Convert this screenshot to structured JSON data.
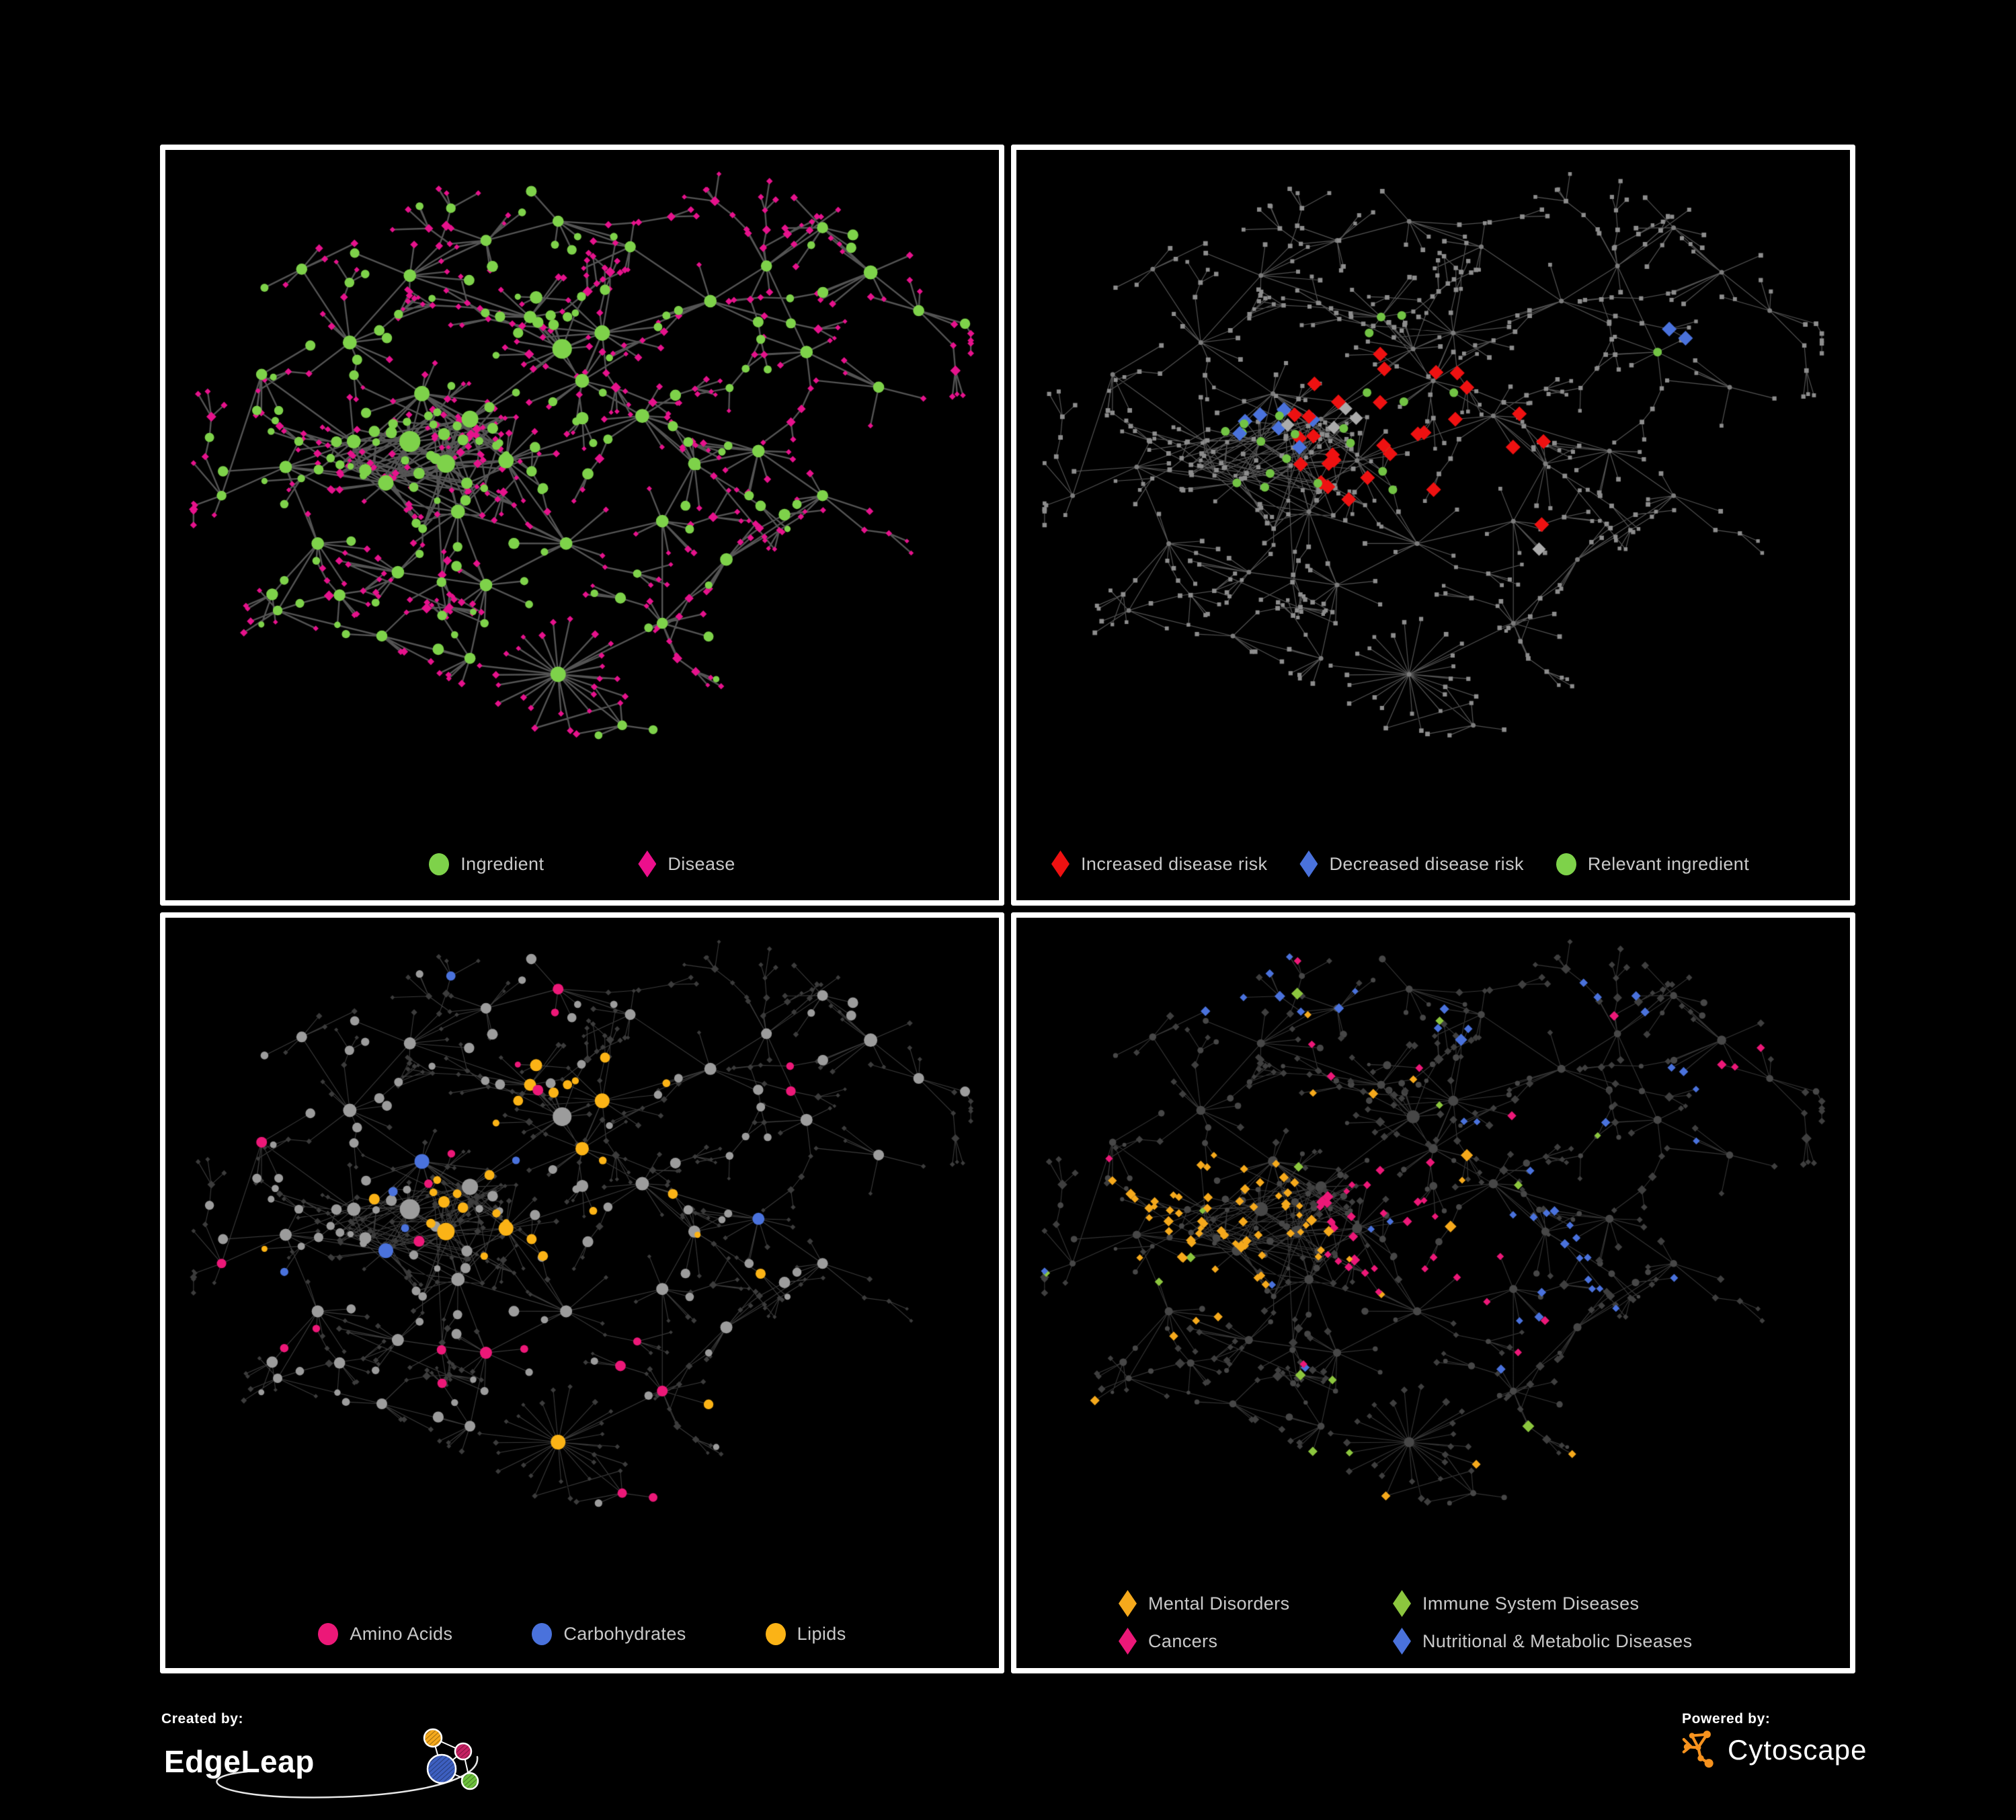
{
  "page": {
    "background": "#000000",
    "panel_border_color": "#ffffff"
  },
  "panels": [
    {
      "name": "node-type-network",
      "legend": {
        "items": [
          {
            "shape": "circle",
            "color": "#7ed24a",
            "label": "Ingredient"
          },
          {
            "shape": "diamond",
            "color": "#ec0f8c",
            "label": "Disease"
          }
        ]
      },
      "style": {
        "mode": "type",
        "edge_color": "#696969",
        "edge_width": 2.4,
        "edge_alpha": 0.8,
        "ingredient_color": "#7ed24a",
        "disease_color": "#e6128c"
      }
    },
    {
      "name": "disease-risk-network",
      "legend": {
        "items": [
          {
            "shape": "diamond",
            "color": "#ee1111",
            "label": "Increased disease risk"
          },
          {
            "shape": "diamond",
            "color": "#4a72dc",
            "label": "Decreased disease risk"
          },
          {
            "shape": "circle",
            "color": "#7ed24a",
            "label": "Relevant ingredient"
          }
        ]
      },
      "style": {
        "mode": "risk",
        "edge_color": "#616161",
        "edge_width": 1.2,
        "edge_alpha": 0.85,
        "base_node_color": "#8d8d8d",
        "hub_node_color": "#7c7c7c",
        "increased_color": "#ee1111",
        "decreased_color": "#4a72dc",
        "neutral_color": "#ababab",
        "ingredient_color": "#72c344"
      }
    },
    {
      "name": "ingredient-class-network",
      "legend": {
        "items": [
          {
            "shape": "circle",
            "color": "#ec1878",
            "label": "Amino Acids"
          },
          {
            "shape": "circle",
            "color": "#4a72dc",
            "label": "Carbohydrates"
          },
          {
            "shape": "circle",
            "color": "#fbb316",
            "label": "Lipids"
          }
        ]
      },
      "style": {
        "mode": "ingredient_class",
        "edge_color": "#a8a8a8",
        "edge_width": 1.1,
        "edge_alpha": 0.35,
        "default_color": "#9c9c9c",
        "amino_color": "#ec1878",
        "carb_color": "#4a72dc",
        "lipid_color": "#fbb316",
        "disease_color": "#3c3c3c"
      }
    },
    {
      "name": "disease-class-network",
      "legend": {
        "items": [
          {
            "shape": "diamond",
            "color": "#f5a91c",
            "label": "Mental Disorders"
          },
          {
            "shape": "diamond",
            "color": "#8cc63e",
            "label": "Immune System Diseases"
          },
          {
            "shape": "diamond",
            "color": "#ec1878",
            "label": "Cancers"
          },
          {
            "shape": "diamond",
            "color": "#4a72dc",
            "label": "Nutritional & Metabolic Diseases"
          }
        ]
      },
      "style": {
        "mode": "disease_class",
        "edge_color": "#9a9a9a",
        "edge_width": 1.1,
        "edge_alpha": 0.35,
        "default_color": "#3f3f3f",
        "mental_color": "#f5a91c",
        "immune_color": "#8cc63e",
        "cancer_color": "#ec1878",
        "nutri_color": "#4a72dc",
        "ingredient_color": "#474747"
      }
    }
  ],
  "footer": {
    "created_by_label": "Created by:",
    "created_by_name": "EdgeLeap",
    "powered_by_label": "Powered by:",
    "powered_by_name": "Cytoscape",
    "cytoscape_brand_color": "#f6921e",
    "edgeleap_node_colors": {
      "orange": "#f5a91c",
      "magenta": "#c52163",
      "blue": "#3d5fc0",
      "green": "#6cbf3c"
    }
  }
}
